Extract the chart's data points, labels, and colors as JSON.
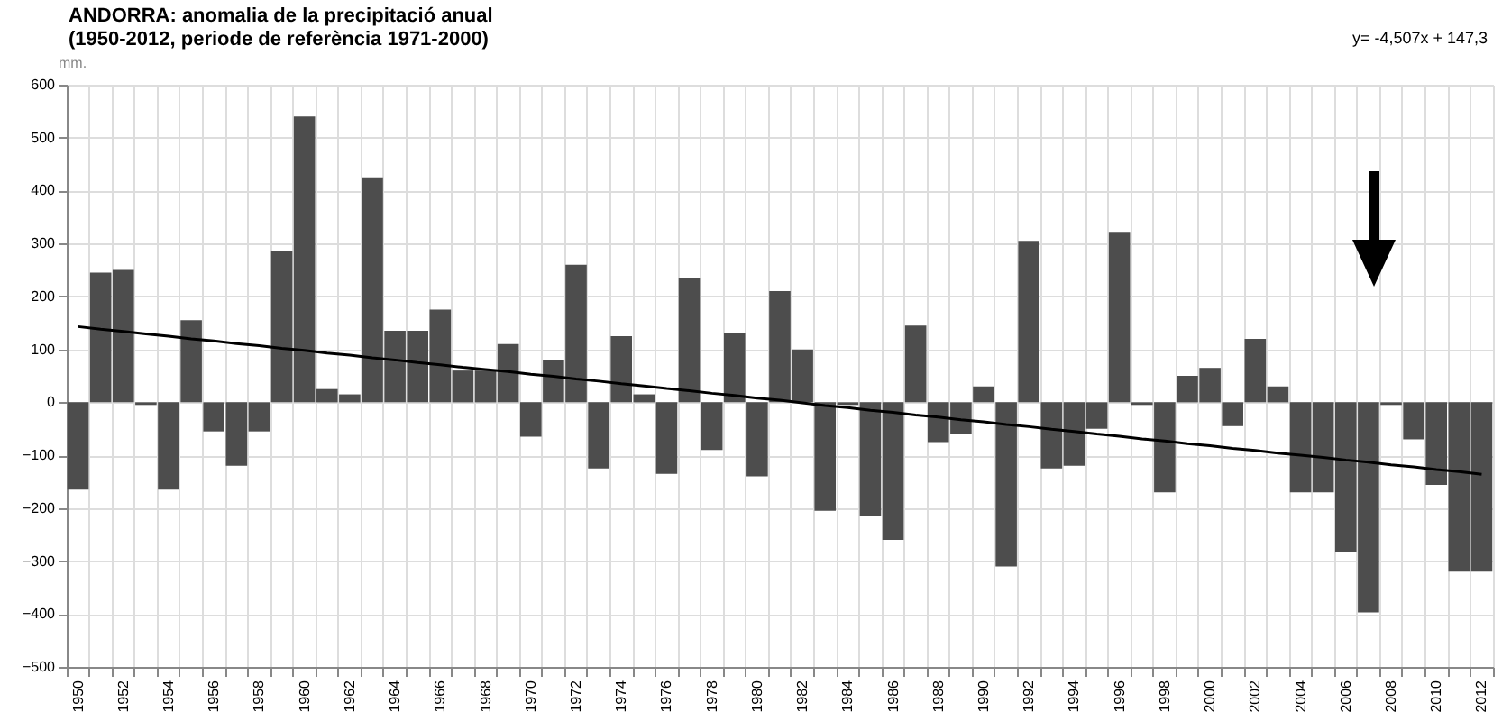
{
  "chart_data": {
    "type": "bar",
    "title": "ANDORRA: anomalia de la precipitació anual\n(1950-2012, periode de referència 1971-2000)",
    "ylabel": "mm.",
    "annotations": [
      "y= -4,507x + 147,3"
    ],
    "categories": [
      "1950",
      null,
      "1952",
      null,
      "1954",
      null,
      "1956",
      null,
      "1958",
      null,
      "1960",
      null,
      "1962",
      null,
      "1964",
      null,
      "1966",
      null,
      "1968",
      null,
      "1970",
      null,
      "1972",
      null,
      "1974",
      null,
      "1976",
      null,
      "1978",
      null,
      "1980",
      null,
      "1982",
      null,
      "1984",
      null,
      "1986",
      null,
      "1988",
      null,
      "1990",
      null,
      "1992",
      null,
      "1994",
      null,
      "1996",
      null,
      "1998",
      null,
      "2000",
      null,
      "2002",
      null,
      "2004",
      null,
      "2006",
      null,
      "2008",
      null,
      "2010",
      null,
      "2012"
    ],
    "series": [
      {
        "color": "#4d4d4d",
        "values": [
          -165,
          245,
          250,
          -5,
          -165,
          155,
          -55,
          -120,
          -55,
          285,
          540,
          25,
          15,
          425,
          135,
          135,
          175,
          60,
          60,
          110,
          -65,
          80,
          260,
          -125,
          125,
          15,
          -135,
          235,
          -90,
          130,
          -140,
          210,
          100,
          -205,
          -5,
          -215,
          -260,
          145,
          -75,
          -60,
          30,
          -310,
          305,
          -125,
          -120,
          -50,
          322,
          -5,
          -170,
          50,
          65,
          -45,
          120,
          30,
          -170,
          -170,
          -282,
          -397,
          -5,
          -70,
          -156,
          -320,
          -320
        ]
      },
      {
        "type": "line",
        "color": "#000000",
        "values": [
          143,
          138,
          134,
          129,
          125,
          120,
          116,
          111,
          107,
          102,
          98,
          93,
          89,
          84,
          80,
          75,
          71,
          66,
          62,
          58,
          53,
          49,
          44,
          40,
          35,
          31,
          26,
          22,
          17,
          13,
          8,
          4,
          -1,
          -6,
          -10,
          -15,
          -19,
          -24,
          -28,
          -33,
          -37,
          -42,
          -46,
          -51,
          -55,
          -60,
          -64,
          -69,
          -73,
          -78,
          -82,
          -87,
          -91,
          -96,
          -100,
          -104,
          -109,
          -113,
          -118,
          -122,
          -127,
          -131,
          -136
        ]
      }
    ],
    "ylim": [
      -500,
      600
    ],
    "yticks": [
      -500,
      -400,
      -300,
      -200,
      -100,
      0,
      100,
      200,
      300,
      400,
      500,
      600
    ],
    "grid": true
  }
}
